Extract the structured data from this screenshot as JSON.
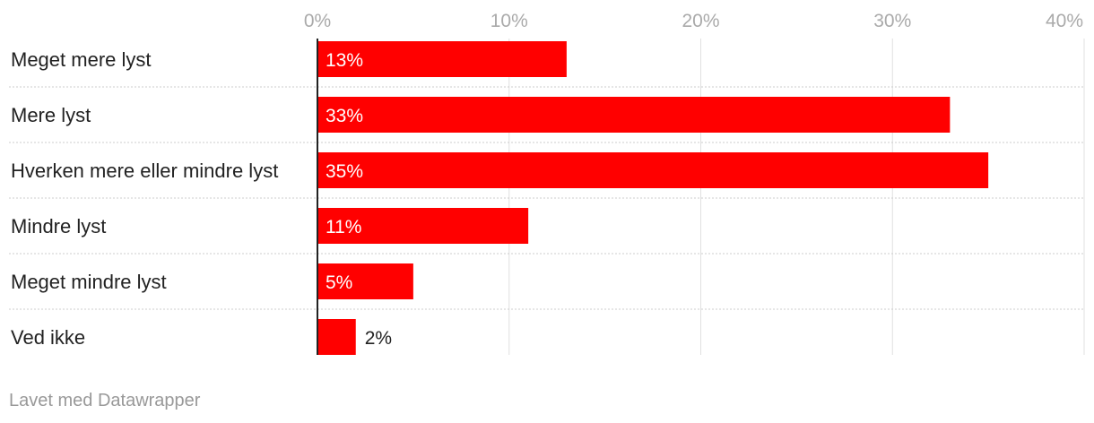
{
  "chart_data": {
    "type": "bar",
    "orientation": "horizontal",
    "categories": [
      "Meget mere lyst",
      "Mere lyst",
      "Hverken mere eller mindre lyst",
      "Mindre lyst",
      "Meget mindre lyst",
      "Ved ikke"
    ],
    "values": [
      13,
      33,
      35,
      11,
      5,
      2
    ],
    "value_labels": [
      "13%",
      "33%",
      "35%",
      "11%",
      "5%",
      "2%"
    ],
    "x_ticks": [
      0,
      10,
      20,
      30,
      40
    ],
    "x_tick_labels": [
      "0%",
      "10%",
      "20%",
      "30%",
      "40%"
    ],
    "xlim": [
      0,
      40
    ],
    "grid": true,
    "bar_color": "#ff0000",
    "title": "",
    "xlabel": "",
    "ylabel": ""
  },
  "footer": {
    "credit": "Lavet med Datawrapper"
  }
}
